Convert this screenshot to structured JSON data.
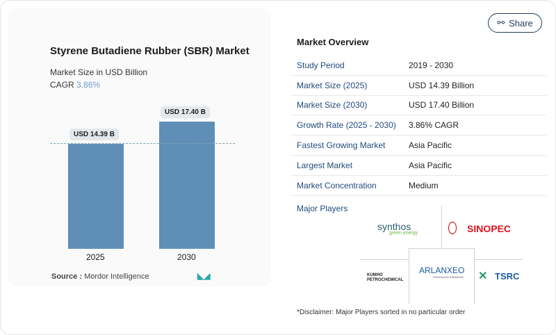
{
  "header": {
    "share_label": "Share",
    "share_icon": "share-icon"
  },
  "chart": {
    "title": "Styrene Butadiene Rubber (SBR) Market",
    "subtitle": "Market Size in USD Billion",
    "cagr_label": "CAGR",
    "cagr_value": "3.86%",
    "source_label": "Source :",
    "source_value": "Mordor Intelligence",
    "logo_text": "MI"
  },
  "chart_data": {
    "type": "bar",
    "categories": [
      "2025",
      "2030"
    ],
    "values": [
      14.39,
      17.4
    ],
    "data_labels": [
      "USD 14.39 B",
      "USD 17.40 B"
    ],
    "title": "Styrene Butadiene Rubber (SBR) Market",
    "ylabel": "Market Size in USD Billion",
    "color": "#5f8fb6"
  },
  "overview": {
    "title": "Market Overview",
    "rows": [
      {
        "k": "Study Period",
        "v": "2019 - 2030"
      },
      {
        "k": "Market Size (2025)",
        "v": "USD 14.39 Billion"
      },
      {
        "k": "Market Size (2030)",
        "v": "USD 17.40 Billion"
      },
      {
        "k": "Growth Rate (2025 - 2030)",
        "v": "3.86% CAGR"
      },
      {
        "k": "Fastest Growing Market",
        "v": "Asia Pacific"
      },
      {
        "k": "Largest Market",
        "v": "Asia Pacific"
      },
      {
        "k": "Market Concentration",
        "v": "Medium"
      }
    ],
    "players_title": "Major Players",
    "players": [
      "synthos",
      "green energy",
      "SINOPEC",
      "KUMHO PETROCHEMICAL",
      "ARLANXEO",
      "Performance Elastomers",
      "TSRC"
    ],
    "disclaimer": "*Disclaimer: Major Players sorted in no particular order"
  }
}
